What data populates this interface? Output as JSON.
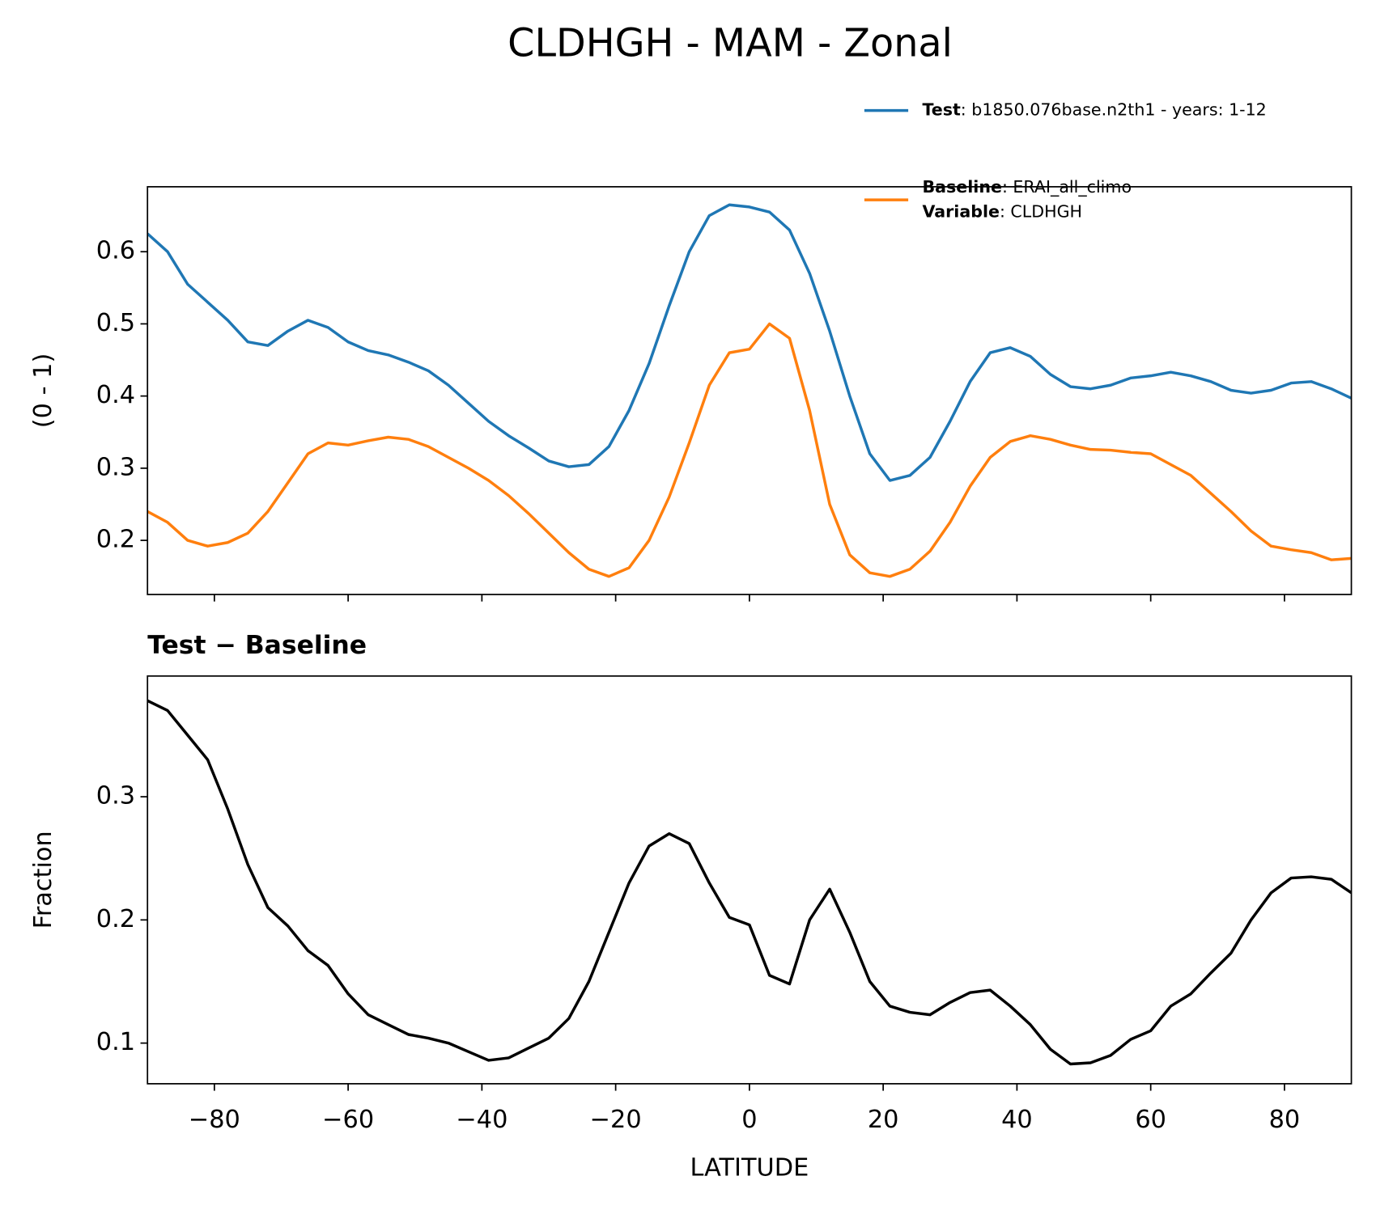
{
  "chart_data": [
    {
      "type": "line",
      "title": "CLDHGH - MAM - Zonal",
      "ylabel": "(0 - 1)",
      "x": [
        -90,
        -87,
        -84,
        -81,
        -78,
        -75,
        -72,
        -69,
        -66,
        -63,
        -60,
        -57,
        -54,
        -51,
        -48,
        -45,
        -42,
        -39,
        -36,
        -33,
        -30,
        -27,
        -24,
        -21,
        -18,
        -15,
        -12,
        -9,
        -6,
        -3,
        0,
        3,
        6,
        9,
        12,
        15,
        18,
        21,
        24,
        27,
        30,
        33,
        36,
        39,
        42,
        45,
        48,
        51,
        54,
        57,
        60,
        63,
        66,
        69,
        72,
        75,
        78,
        81,
        84,
        87,
        90
      ],
      "series": [
        {
          "name": "Test",
          "detail": ": b1850.076base.n2th1 - years: 1-12",
          "color": "#1f77b4",
          "values": [
            0.625,
            0.6,
            0.555,
            0.53,
            0.505,
            0.475,
            0.47,
            0.49,
            0.505,
            0.495,
            0.475,
            0.463,
            0.457,
            0.447,
            0.435,
            0.415,
            0.39,
            0.365,
            0.345,
            0.328,
            0.31,
            0.302,
            0.305,
            0.33,
            0.38,
            0.445,
            0.525,
            0.6,
            0.65,
            0.665,
            0.662,
            0.655,
            0.63,
            0.57,
            0.49,
            0.4,
            0.32,
            0.283,
            0.29,
            0.315,
            0.365,
            0.42,
            0.46,
            0.467,
            0.455,
            0.43,
            0.413,
            0.41,
            0.415,
            0.425,
            0.428,
            0.433,
            0.428,
            0.42,
            0.408,
            0.404,
            0.408,
            0.418,
            0.42,
            0.41,
            0.397
          ]
        },
        {
          "name": "Baseline",
          "detail": ": ERAI_all_climo",
          "extra_name": "Variable",
          "extra_detail": ": CLDHGH",
          "color": "#ff7f0e",
          "values": [
            0.24,
            0.225,
            0.2,
            0.192,
            0.197,
            0.21,
            0.24,
            0.28,
            0.32,
            0.335,
            0.332,
            0.338,
            0.343,
            0.34,
            0.33,
            0.315,
            0.3,
            0.283,
            0.262,
            0.237,
            0.21,
            0.183,
            0.16,
            0.15,
            0.162,
            0.2,
            0.26,
            0.335,
            0.415,
            0.46,
            0.465,
            0.5,
            0.48,
            0.38,
            0.25,
            0.18,
            0.155,
            0.15,
            0.16,
            0.185,
            0.225,
            0.275,
            0.315,
            0.337,
            0.345,
            0.34,
            0.332,
            0.326,
            0.325,
            0.322,
            0.32,
            0.305,
            0.29,
            0.265,
            0.24,
            0.213,
            0.192,
            0.187,
            0.183,
            0.173,
            0.175
          ]
        }
      ],
      "xlim": [
        -90,
        90
      ],
      "xticks": [
        -80,
        -60,
        -40,
        -20,
        0,
        20,
        40,
        60,
        80
      ],
      "show_xtick_labels": false,
      "ylim": [
        0.125,
        0.69
      ],
      "yticks": [
        0.2,
        0.3,
        0.4,
        0.5,
        0.6
      ],
      "legend": "upper right"
    },
    {
      "type": "line",
      "subtitle": "Test − Baseline",
      "xlabel": "LATITUDE",
      "ylabel": "Fraction",
      "x": [
        -90,
        -87,
        -84,
        -81,
        -78,
        -75,
        -72,
        -69,
        -66,
        -63,
        -60,
        -57,
        -54,
        -51,
        -48,
        -45,
        -42,
        -39,
        -36,
        -33,
        -30,
        -27,
        -24,
        -21,
        -18,
        -15,
        -12,
        -9,
        -6,
        -3,
        0,
        3,
        6,
        9,
        12,
        15,
        18,
        21,
        24,
        27,
        30,
        33,
        36,
        39,
        42,
        45,
        48,
        51,
        54,
        57,
        60,
        63,
        66,
        69,
        72,
        75,
        78,
        81,
        84,
        87,
        90
      ],
      "series": [
        {
          "color": "#000000",
          "values": [
            0.378,
            0.37,
            0.35,
            0.33,
            0.29,
            0.245,
            0.21,
            0.195,
            0.175,
            0.163,
            0.14,
            0.123,
            0.115,
            0.107,
            0.104,
            0.1,
            0.093,
            0.086,
            0.088,
            0.096,
            0.104,
            0.12,
            0.15,
            0.19,
            0.23,
            0.26,
            0.27,
            0.262,
            0.23,
            0.202,
            0.196,
            0.155,
            0.148,
            0.2,
            0.225,
            0.19,
            0.15,
            0.13,
            0.125,
            0.123,
            0.133,
            0.141,
            0.143,
            0.13,
            0.115,
            0.095,
            0.083,
            0.084,
            0.09,
            0.103,
            0.11,
            0.13,
            0.14,
            0.157,
            0.173,
            0.2,
            0.222,
            0.234,
            0.235,
            0.233,
            0.222
          ]
        }
      ],
      "xlim": [
        -90,
        90
      ],
      "xticks": [
        {
          "value": -80,
          "label": "−80"
        },
        {
          "value": -60,
          "label": "−60"
        },
        {
          "value": -40,
          "label": "−40"
        },
        {
          "value": -20,
          "label": "−20"
        },
        0,
        20,
        40,
        60,
        80
      ],
      "show_xtick_labels": true,
      "ylim": [
        0.067,
        0.398
      ],
      "yticks": [
        0.1,
        0.2,
        0.3
      ]
    }
  ]
}
